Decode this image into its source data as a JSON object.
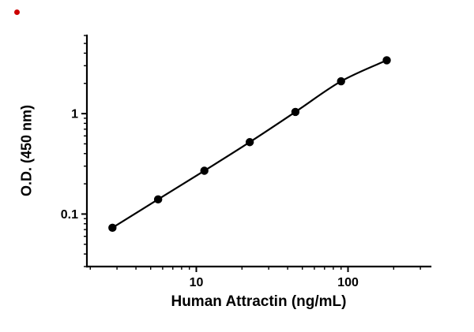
{
  "figure": {
    "background": "#ffffff",
    "red_dot_color": "#cc0000"
  },
  "chart_data": {
    "type": "line",
    "title": "",
    "xlabel": "Human Attractin (ng/mL)",
    "ylabel": "O.D. (450 nm)",
    "x_scale": "log",
    "y_scale": "log",
    "x": [
      2.8,
      5.6,
      11.3,
      22.5,
      45,
      90,
      180
    ],
    "y": [
      0.073,
      0.14,
      0.27,
      0.52,
      1.04,
      2.1,
      3.4
    ],
    "xlim": [
      1.9,
      350
    ],
    "ylim": [
      0.03,
      6
    ],
    "x_major_ticks": [
      10,
      100
    ],
    "x_major_tick_labels": [
      "10",
      "100"
    ],
    "y_major_ticks": [
      0.1,
      1
    ],
    "y_major_tick_labels": [
      "0.1",
      "1"
    ],
    "grid": false,
    "legend": "none",
    "line_color": "#000000",
    "marker": "filled-circle",
    "marker_color": "#000000"
  }
}
